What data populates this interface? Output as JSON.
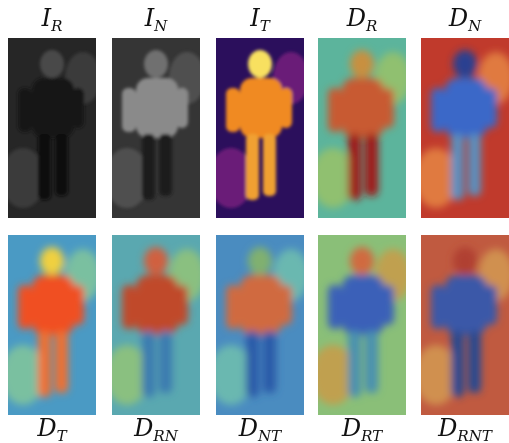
{
  "panels": [
    {
      "symbol": "I",
      "sub": "R"
    },
    {
      "symbol": "I",
      "sub": "N"
    },
    {
      "symbol": "I",
      "sub": "T"
    },
    {
      "symbol": "D",
      "sub": "R"
    },
    {
      "symbol": "D",
      "sub": "N"
    },
    {
      "symbol": "D",
      "sub": "T"
    },
    {
      "symbol": "D",
      "sub": "RN"
    },
    {
      "symbol": "D",
      "sub": "NT"
    },
    {
      "symbol": "D",
      "sub": "RT"
    },
    {
      "symbol": "D",
      "sub": "RNT"
    }
  ]
}
